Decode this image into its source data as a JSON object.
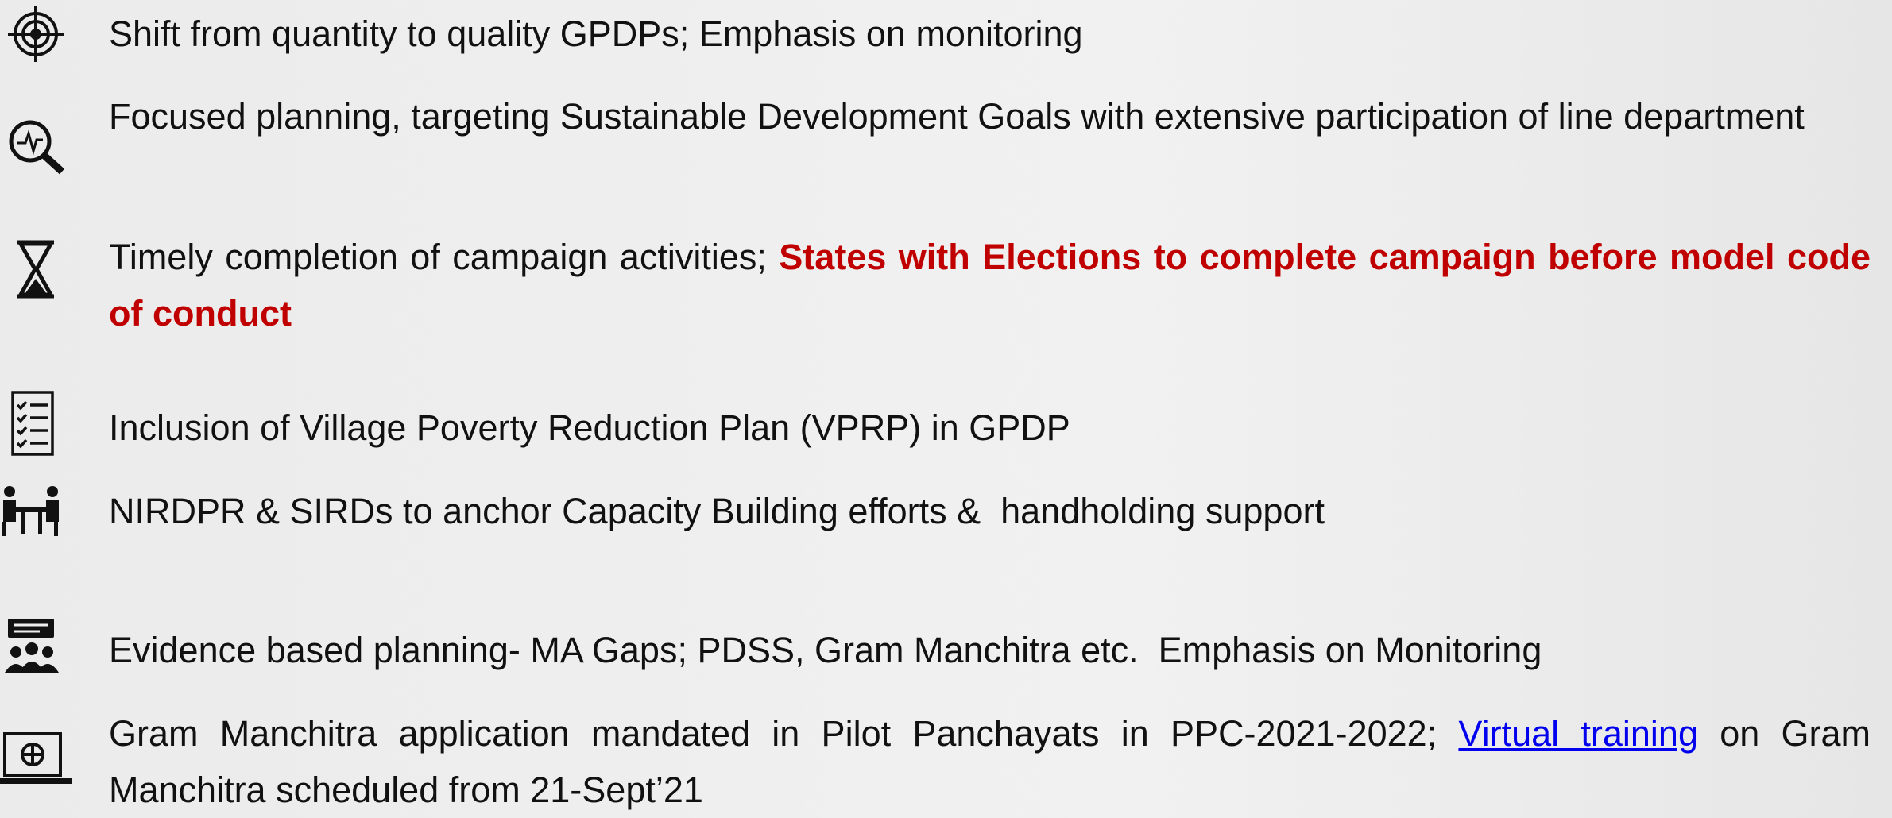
{
  "items": [
    {
      "icon": "target",
      "segments": [
        {
          "text": "Shift from quantity to quality GPDPs; Emphasis on monitoring",
          "style": "normal"
        }
      ]
    },
    {
      "icon": "search",
      "segments": [
        {
          "text": "Focused planning, targeting Sustainable Development Goals with extensive participation of line department",
          "style": "normal"
        }
      ]
    },
    {
      "icon": "hourglass",
      "segments": [
        {
          "text": "Timely completion of campaign activities; ",
          "style": "normal"
        },
        {
          "text": "States with Elections to complete campaign before model code of conduct",
          "style": "emphasis"
        }
      ]
    },
    {
      "icon": "checklist",
      "segments": [
        {
          "text": "Inclusion of Village Poverty Reduction Plan (VPRP) in GPDP",
          "style": "normal"
        }
      ]
    },
    {
      "icon": "training",
      "segments": [
        {
          "text": "NIRDPR & SIRDs to anchor Capacity Building efforts &  handholding support",
          "style": "normal"
        }
      ]
    },
    {
      "icon": "group",
      "segments": [
        {
          "text": "Evidence based planning- MA Gaps; PDSS, Gram Manchitra etc.  Emphasis on Monitoring",
          "style": "normal"
        }
      ]
    },
    {
      "icon": "laptop",
      "segments": [
        {
          "text": "Gram Manchitra application mandated in Pilot Panchayats in PPC-2021-2022; ",
          "style": "normal"
        },
        {
          "text": "Virtual training",
          "style": "link"
        },
        {
          "text": " on Gram Manchitra scheduled from 21-Sept’21",
          "style": "normal"
        }
      ]
    }
  ]
}
